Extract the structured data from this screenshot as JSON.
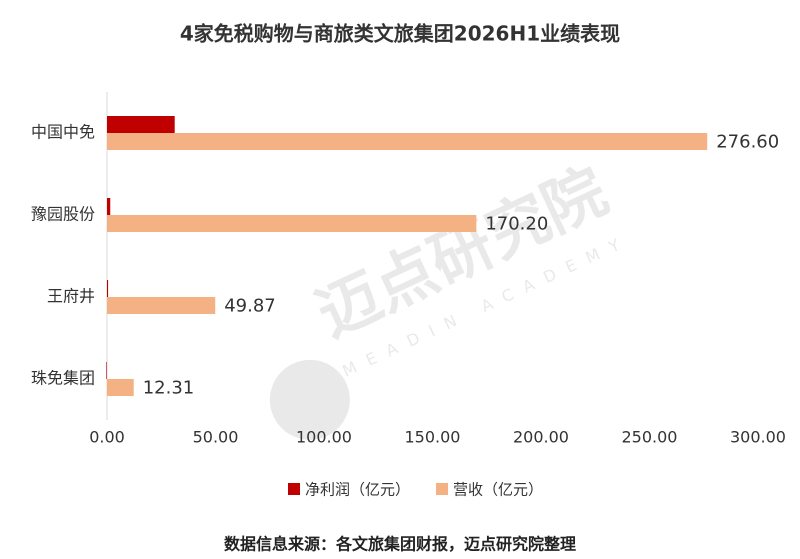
{
  "chart_data": {
    "type": "hbar",
    "title": "4家免税购物与商旅类文旅集团2026H1业绩表现",
    "categories": [
      "中国中免",
      "豫园股份",
      "王府井",
      "珠免集团"
    ],
    "series": [
      {
        "name": "净利润（亿元）",
        "color": "#c00000",
        "values": [
          31.2,
          1.5,
          0.5,
          -0.3
        ]
      },
      {
        "name": "营收（亿元）",
        "color": "#f4b183",
        "values": [
          276.6,
          170.2,
          49.87,
          12.31
        ],
        "value_labels": [
          "276.60",
          "170.20",
          "49.87",
          "12.31"
        ]
      }
    ],
    "xlim": [
      0,
      300
    ],
    "xticks": [
      {
        "value": 0,
        "label": "0.00"
      },
      {
        "value": 50,
        "label": "50.00"
      },
      {
        "value": 100,
        "label": "100.00"
      },
      {
        "value": 150,
        "label": "150.00"
      },
      {
        "value": 200,
        "label": "200.00"
      },
      {
        "value": 250,
        "label": "250.00"
      },
      {
        "value": 300,
        "label": "300.00"
      }
    ],
    "legend": "bottom",
    "source": "数据信息来源：各文旅集团财报，迈点研究院整理",
    "watermark": {
      "text": "迈点研究院",
      "subtext": "MEADIN ACADEMY"
    }
  }
}
